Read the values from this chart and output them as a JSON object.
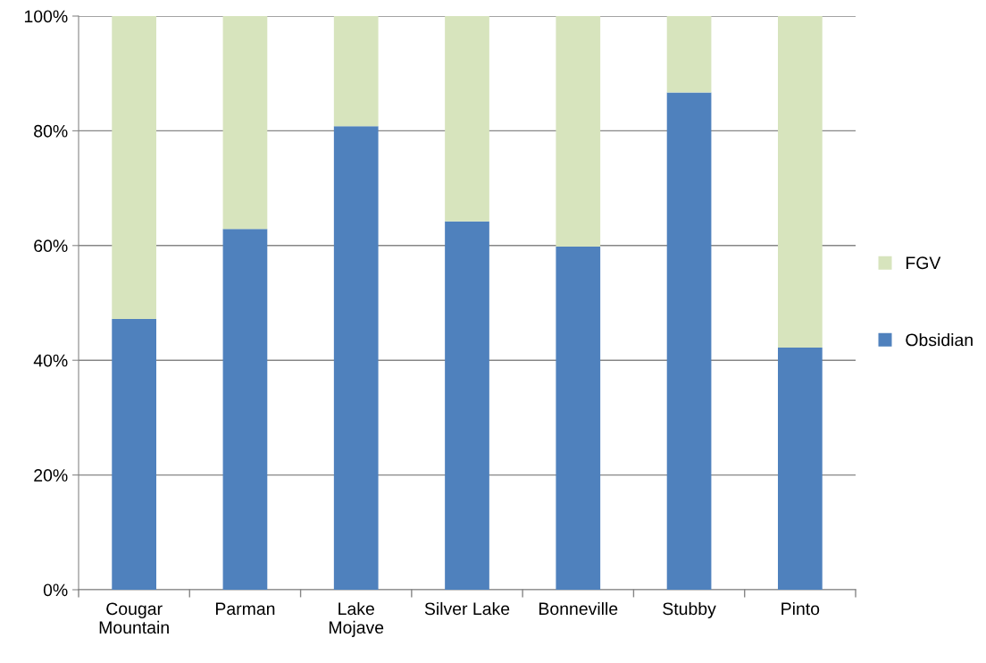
{
  "chart_data": {
    "type": "bar",
    "stacked": true,
    "categories": [
      "Cougar\nMountain",
      "Parman",
      "Lake\nMojave",
      "Silver Lake",
      "Bonneville",
      "Stubby",
      "Pinto"
    ],
    "series": [
      {
        "name": "Obsidian",
        "color": "#4f81bd",
        "values": [
          47.2,
          62.9,
          80.8,
          64.2,
          59.8,
          86.7,
          42.2
        ]
      },
      {
        "name": "FGV",
        "color": "#d7e4bd",
        "values": [
          52.8,
          37.1,
          19.2,
          35.8,
          40.2,
          13.3,
          57.8
        ]
      }
    ],
    "ylim": [
      0,
      100
    ],
    "yticks": [
      {
        "value": 0,
        "label": "0%"
      },
      {
        "value": 20,
        "label": "20%"
      },
      {
        "value": 40,
        "label": "40%"
      },
      {
        "value": 60,
        "label": "60%"
      },
      {
        "value": 80,
        "label": "80%"
      },
      {
        "value": 100,
        "label": "100%"
      }
    ],
    "grid": "y",
    "legend": "right"
  }
}
